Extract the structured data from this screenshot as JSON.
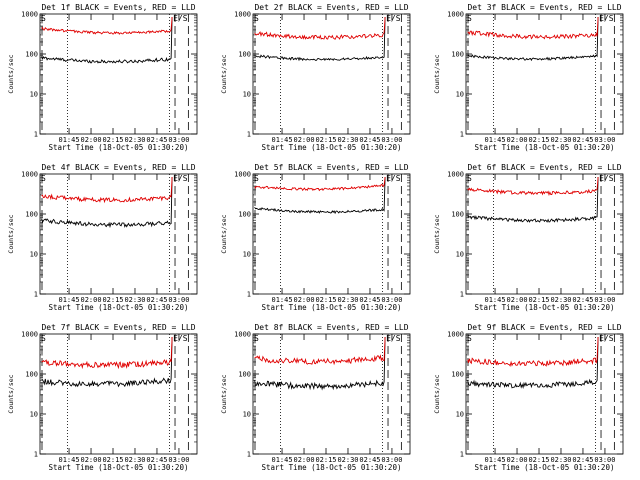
{
  "colors": {
    "events": "#000000",
    "lld": "#e00000",
    "background": "#ffffff"
  },
  "chart_data": [
    {
      "type": "line",
      "title": "Det 1f BLACK = Events, RED = LLD",
      "xlabel": "Start Time (18-Oct-05 01:30:20)",
      "ylabel": "Counts/sec",
      "yscale": "log",
      "ylim": [
        1,
        1000
      ],
      "yticks": [
        "1",
        "10",
        "100",
        "1000"
      ],
      "xtick_labels": [
        "01:45",
        "02:00",
        "02:15",
        "02:30",
        "02:45",
        "03:00"
      ],
      "markers": {
        "start": "S",
        "end": "E/S"
      },
      "series": [
        {
          "name": "Events",
          "level": 80,
          "end_level": 75,
          "noise": 0.04
        },
        {
          "name": "LLD",
          "level": 430,
          "end_level": 380,
          "noise": 0.03
        }
      ]
    },
    {
      "type": "line",
      "title": "Det 2f BLACK = Events, RED = LLD",
      "xlabel": "Start Time (18-Oct-05 01:30:20)",
      "ylabel": "Counts/sec",
      "yscale": "log",
      "ylim": [
        1,
        1000
      ],
      "yticks": [
        "1",
        "10",
        "100",
        "1000"
      ],
      "xtick_labels": [
        "01:45",
        "02:00",
        "02:15",
        "02:30",
        "02:45",
        "03:00"
      ],
      "markers": {
        "start": "S",
        "end": "E/S"
      },
      "series": [
        {
          "name": "Events",
          "level": 90,
          "end_level": 85,
          "noise": 0.03
        },
        {
          "name": "LLD",
          "level": 330,
          "end_level": 300,
          "noise": 0.05
        }
      ]
    },
    {
      "type": "line",
      "title": "Det 3f BLACK = Events, RED = LLD",
      "xlabel": "Start Time (18-Oct-05 01:30:20)",
      "ylabel": "Counts/sec",
      "yscale": "log",
      "ylim": [
        1,
        1000
      ],
      "yticks": [
        "1",
        "10",
        "100",
        "1000"
      ],
      "xtick_labels": [
        "01:45",
        "02:00",
        "02:15",
        "02:30",
        "02:45",
        "03:00"
      ],
      "markers": {
        "start": "S",
        "end": "E/S"
      },
      "series": [
        {
          "name": "Events",
          "level": 90,
          "end_level": 90,
          "noise": 0.03
        },
        {
          "name": "LLD",
          "level": 350,
          "end_level": 300,
          "noise": 0.05
        }
      ]
    },
    {
      "type": "line",
      "title": "Det 4f BLACK = Events, RED = LLD",
      "xlabel": "Start Time (18-Oct-05 01:30:20)",
      "ylabel": "Counts/sec",
      "yscale": "log",
      "ylim": [
        1,
        1000
      ],
      "yticks": [
        "1",
        "10",
        "100",
        "1000"
      ],
      "xtick_labels": [
        "01:45",
        "02:00",
        "02:15",
        "02:30",
        "02:45",
        "03:00"
      ],
      "markers": {
        "start": "S",
        "end": "E/S"
      },
      "series": [
        {
          "name": "Events",
          "level": 70,
          "end_level": 60,
          "noise": 0.05
        },
        {
          "name": "LLD",
          "level": 280,
          "end_level": 260,
          "noise": 0.05
        }
      ]
    },
    {
      "type": "line",
      "title": "Det 5f BLACK = Events, RED = LLD",
      "xlabel": "Start Time (18-Oct-05 01:30:20)",
      "ylabel": "Counts/sec",
      "yscale": "log",
      "ylim": [
        1,
        1000
      ],
      "yticks": [
        "1",
        "10",
        "100",
        "1000"
      ],
      "xtick_labels": [
        "01:45",
        "02:00",
        "02:15",
        "02:30",
        "02:45",
        "03:00"
      ],
      "markers": {
        "start": "S",
        "end": "E/S"
      },
      "series": [
        {
          "name": "Events",
          "level": 140,
          "end_level": 130,
          "noise": 0.03
        },
        {
          "name": "LLD",
          "level": 480,
          "end_level": 520,
          "noise": 0.03
        }
      ]
    },
    {
      "type": "line",
      "title": "Det 6f BLACK = Events, RED = LLD",
      "xlabel": "Start Time (18-Oct-05 01:30:20)",
      "ylabel": "Counts/sec",
      "yscale": "log",
      "ylim": [
        1,
        1000
      ],
      "yticks": [
        "1",
        "10",
        "100",
        "1000"
      ],
      "xtick_labels": [
        "01:45",
        "02:00",
        "02:15",
        "02:30",
        "02:45",
        "03:00"
      ],
      "markers": {
        "start": "S",
        "end": "E/S"
      },
      "series": [
        {
          "name": "Events",
          "level": 85,
          "end_level": 80,
          "noise": 0.04
        },
        {
          "name": "LLD",
          "level": 420,
          "end_level": 380,
          "noise": 0.04
        }
      ]
    },
    {
      "type": "line",
      "title": "Det 7f BLACK = Events, RED = LLD",
      "xlabel": "Start Time (18-Oct-05 01:30:20)",
      "ylabel": "Counts/sec",
      "yscale": "log",
      "ylim": [
        1,
        1000
      ],
      "yticks": [
        "1",
        "10",
        "100",
        "1000"
      ],
      "xtick_labels": [
        "01:45",
        "02:00",
        "02:15",
        "02:30",
        "02:45",
        "03:00"
      ],
      "markers": {
        "start": "S",
        "end": "E/S"
      },
      "series": [
        {
          "name": "Events",
          "level": 65,
          "end_level": 70,
          "noise": 0.07
        },
        {
          "name": "LLD",
          "level": 200,
          "end_level": 200,
          "noise": 0.07
        }
      ]
    },
    {
      "type": "line",
      "title": "Det 8f BLACK = Events, RED = LLD",
      "xlabel": "Start Time (18-Oct-05 01:30:20)",
      "ylabel": "Counts/sec",
      "yscale": "log",
      "ylim": [
        1,
        1000
      ],
      "yticks": [
        "1",
        "10",
        "100",
        "1000"
      ],
      "xtick_labels": [
        "01:45",
        "02:00",
        "02:15",
        "02:30",
        "02:45",
        "03:00"
      ],
      "markers": {
        "start": "S",
        "end": "E/S"
      },
      "series": [
        {
          "name": "Events",
          "level": 60,
          "end_level": 60,
          "noise": 0.07
        },
        {
          "name": "LLD",
          "level": 240,
          "end_level": 250,
          "noise": 0.07
        }
      ]
    },
    {
      "type": "line",
      "title": "Det 9f BLACK = Events, RED = LLD",
      "xlabel": "Start Time (18-Oct-05 01:30:20)",
      "ylabel": "Counts/sec",
      "yscale": "log",
      "ylim": [
        1,
        1000
      ],
      "yticks": [
        "1",
        "10",
        "100",
        "1000"
      ],
      "xtick_labels": [
        "01:45",
        "02:00",
        "02:15",
        "02:30",
        "02:45",
        "03:00"
      ],
      "markers": {
        "start": "S",
        "end": "E/S"
      },
      "series": [
        {
          "name": "Events",
          "level": 60,
          "end_level": 65,
          "noise": 0.07
        },
        {
          "name": "LLD",
          "level": 220,
          "end_level": 220,
          "noise": 0.07
        }
      ]
    }
  ]
}
